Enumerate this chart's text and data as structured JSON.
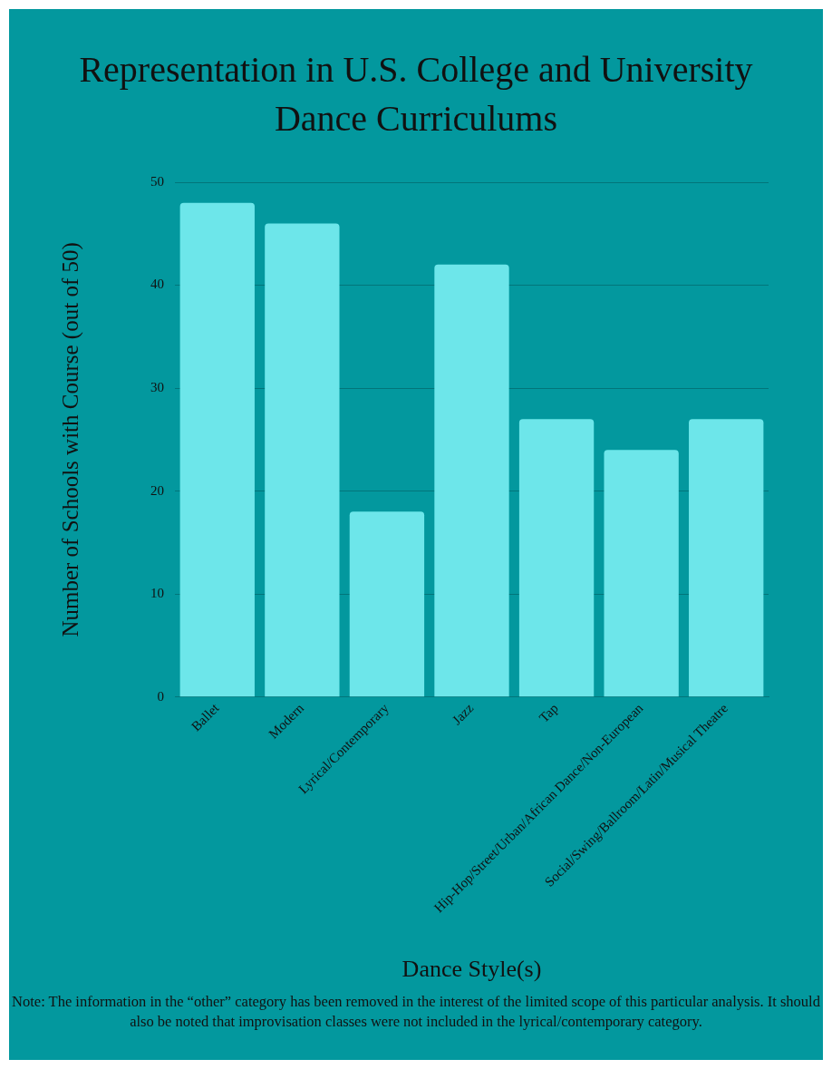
{
  "chart_data": {
    "type": "bar",
    "title": "Representation in U.S. College and University Dance Curriculums",
    "xlabel": "Dance Style(s)",
    "ylabel": "Number of Schools with Course (out of 50)",
    "categories": [
      "Ballet",
      "Modern",
      "Lyrical/Contemporary",
      "Jazz",
      "Tap",
      "Hip-Hop/Street/Urban/African Dance/Non-European",
      "Social/Swing/Ballroom/Latin/Musical Theatre"
    ],
    "values": [
      48,
      46,
      18,
      42,
      27,
      24,
      27
    ],
    "color": "#6de6ea",
    "ylim": [
      0,
      50
    ],
    "yticks": [
      0,
      10,
      20,
      30,
      40,
      50
    ],
    "grid": "y",
    "annotations": [
      "Note: The information in the “other” category has been removed in the interest of the limited scope of this particular analysis. It should also be noted that improvisation classes were not included in the lyrical/contemporary category."
    ]
  }
}
